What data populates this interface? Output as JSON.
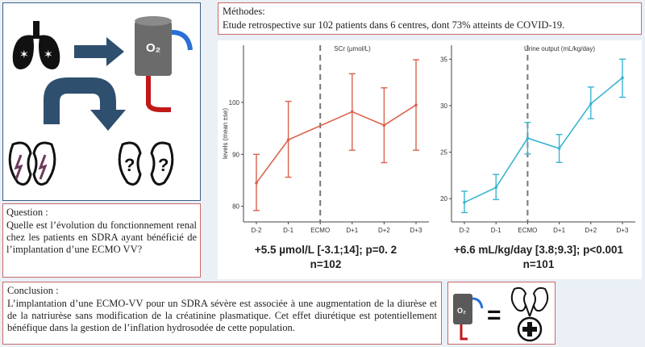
{
  "methods": {
    "heading": "Méthodes:",
    "text": "Etude retrospective sur 102 patients dans 6 centres, dont 73% atteints de COVID-19."
  },
  "question": {
    "heading": "Question :",
    "text": "Quelle est l’évolution du fonctionnement renal chez les patients en SDRA ayant bénéficié de l’implantation d’une ECMO VV?"
  },
  "conclusion": {
    "heading": "Conclusion :",
    "text": "L’implantation d’une ECMO-VV pour un SDRA sévère est associée à une augmentation de la diurèse et de la natriurèse sans modification de la créatinine plasmatique. Cet effet diurétique est potentiellement bénéfique dans la gestion de l’inflation hydrosodée de cette population."
  },
  "graphics": {
    "o2_label": "O₂",
    "question_mark": "?",
    "equals": "="
  },
  "colors": {
    "scr": "#d9624a",
    "urine": "#3ab4d0",
    "dark_arrow": "#2f4f6f",
    "cylinder": "#6b6b6b"
  },
  "chart_data": [
    {
      "type": "line",
      "title": "SCr (µmol/L)",
      "ylabel": "levels (mean ±se)",
      "x": [
        "D-2",
        "D-1",
        "ECMO",
        "D+1",
        "D+2",
        "D+3"
      ],
      "series": [
        {
          "values": [
            84.5,
            92.8,
            null,
            98.2,
            95.6,
            99.5
          ],
          "lower": [
            79.2,
            85.6,
            null,
            90.8,
            88.4,
            90.8
          ],
          "upper": [
            90.0,
            100.2,
            null,
            105.5,
            102.8,
            108.2
          ]
        }
      ],
      "ylim": [
        77,
        111
      ],
      "yticks": [
        80,
        90,
        100
      ],
      "event_marker": "ECMO",
      "stat": "+5.5 µmol/L  [-3.1;14];  p=0. 2",
      "n": "n=102"
    },
    {
      "type": "line",
      "title": "Urine output (mL/kg/day)",
      "ylabel": "",
      "x": [
        "D-2",
        "D-1",
        "ECMO",
        "D+1",
        "D+2",
        "D+3"
      ],
      "series": [
        {
          "values": [
            19.6,
            21.2,
            26.5,
            25.4,
            30.2,
            33.0
          ],
          "lower": [
            18.5,
            19.9,
            24.8,
            23.9,
            28.6,
            30.9
          ],
          "upper": [
            20.8,
            22.6,
            28.2,
            26.9,
            32.0,
            35.0
          ]
        }
      ],
      "ylim": [
        17.5,
        36.5
      ],
      "yticks": [
        20,
        25,
        30,
        35
      ],
      "event_marker": "ECMO",
      "stat": "+6.6 mL/kg/day  [3.8;9.3];  p<0.001",
      "n": "n=101"
    }
  ]
}
